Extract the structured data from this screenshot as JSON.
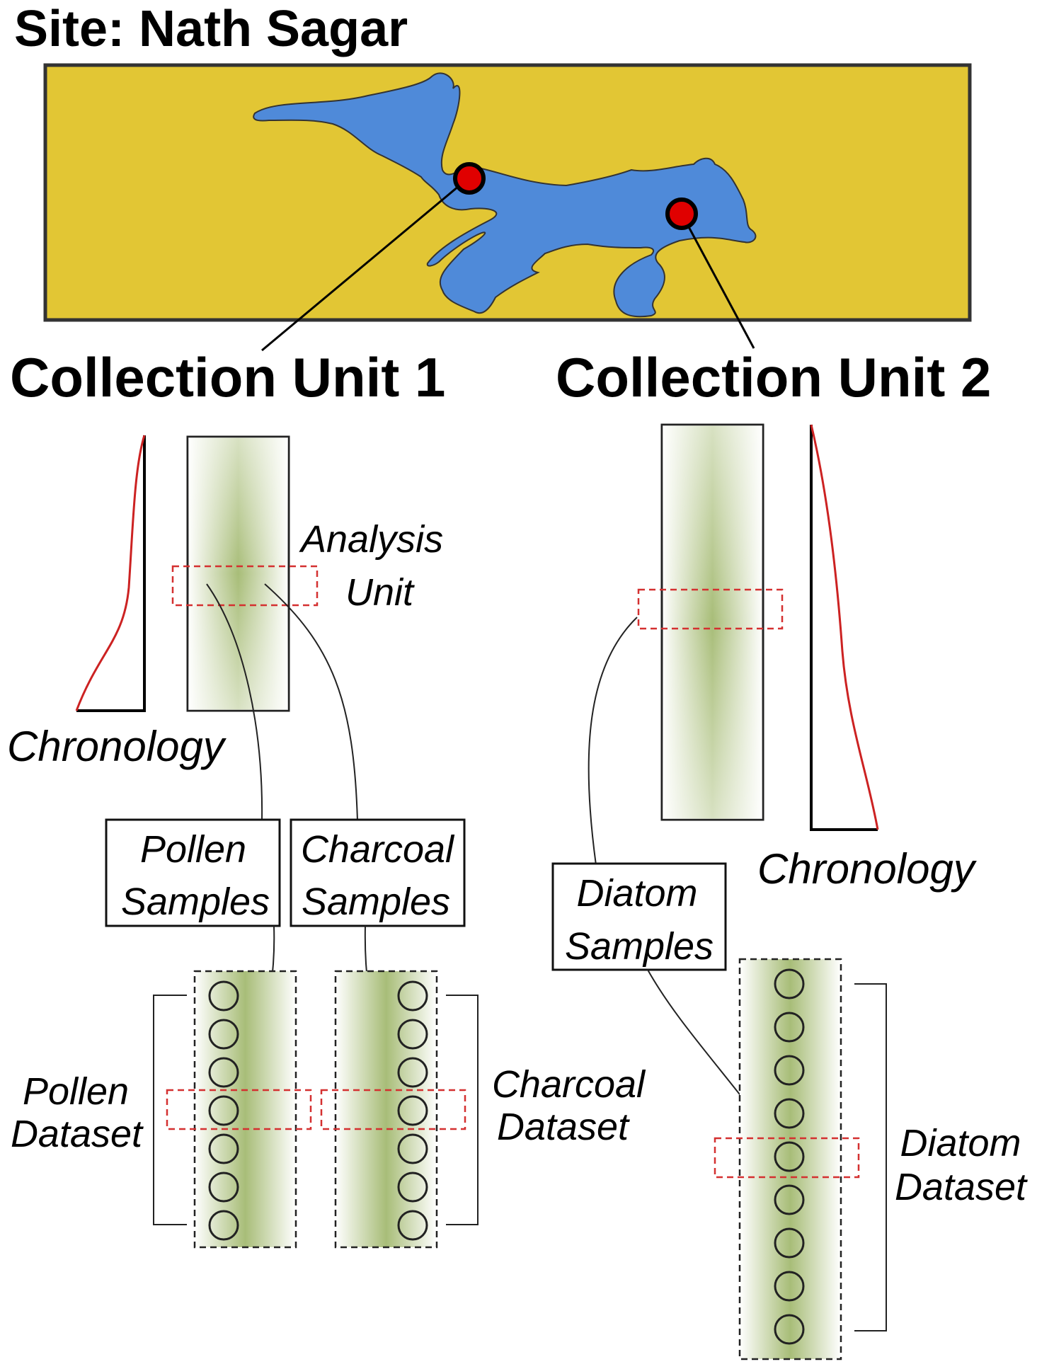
{
  "site": {
    "title": "Site: Nath Sagar"
  },
  "colors": {
    "land": "#e2c634",
    "water": "#4f8ad9",
    "marker": "#e00000",
    "chronology_curve": "#cc2222",
    "selection": "#d43030",
    "core_fill": "#a8bd78",
    "ink": "#222222"
  },
  "collection_units": [
    {
      "label": "Collection Unit 1",
      "chronology_label": "Chronology",
      "analysis_unit_label": [
        "Analysis",
        "Unit"
      ],
      "sample_boxes": [
        {
          "lines": [
            "Pollen",
            "Samples"
          ]
        },
        {
          "lines": [
            "Charcoal",
            "Samples"
          ]
        }
      ],
      "datasets": [
        {
          "lines": [
            "Pollen",
            "Dataset"
          ],
          "sample_count": 7
        },
        {
          "lines": [
            "Charcoal",
            "Dataset"
          ],
          "sample_count": 7
        }
      ]
    },
    {
      "label": "Collection Unit 2",
      "chronology_label": "Chronology",
      "sample_boxes": [
        {
          "lines": [
            "Diatom",
            "Samples"
          ]
        }
      ],
      "datasets": [
        {
          "lines": [
            "Diatom",
            "Dataset"
          ],
          "sample_count": 9
        }
      ]
    }
  ],
  "icons": [
    "lake-map-icon",
    "core-marker-icon",
    "sediment-core-icon",
    "chronology-curve-icon",
    "sample-circle-icon"
  ]
}
